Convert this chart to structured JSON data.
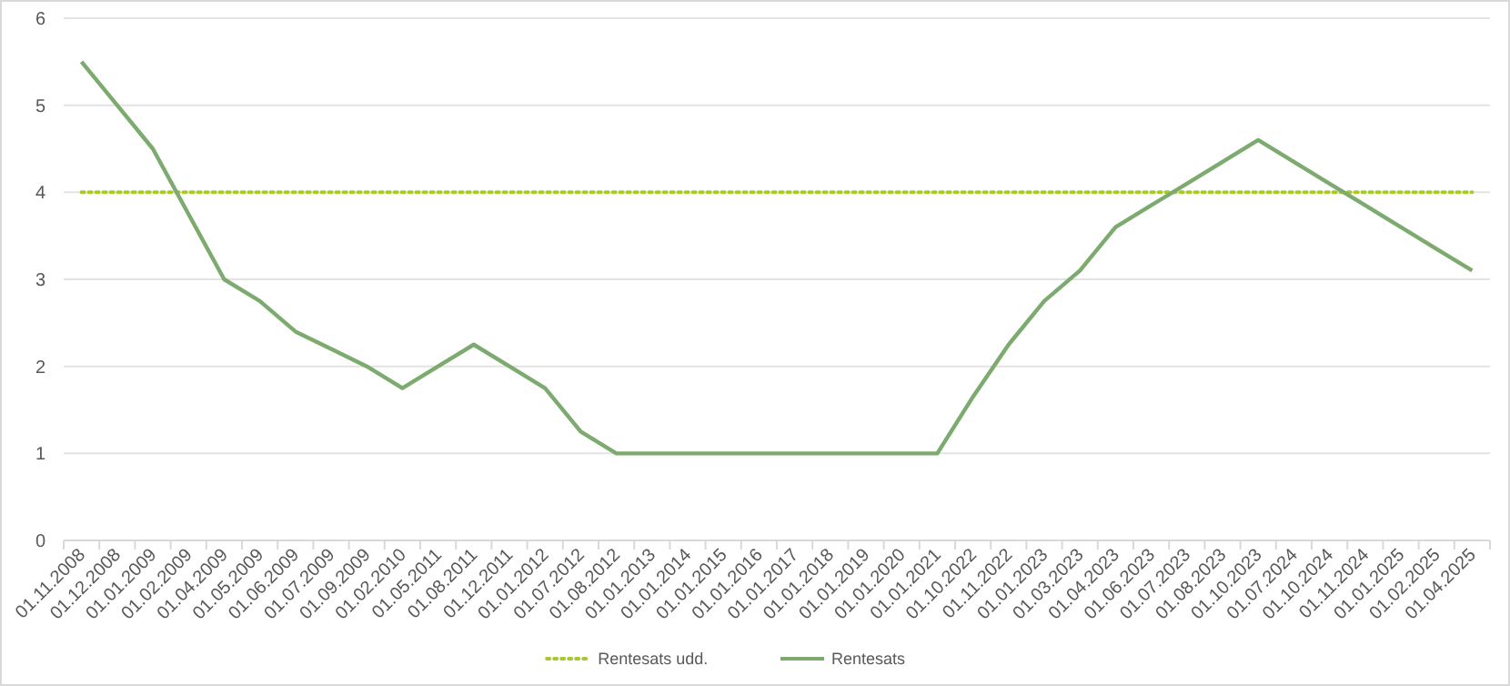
{
  "chart_data": {
    "type": "line",
    "categories": [
      "01.11.2008",
      "01.12.2008",
      "01.01.2009",
      "01.02.2009",
      "01.04.2009",
      "01.05.2009",
      "01.06.2009",
      "01.07.2009",
      "01.09.2009",
      "01.02.2010",
      "01.05.2011",
      "01.08.2011",
      "01.12.2011",
      "01.01.2012",
      "01.07.2012",
      "01.08.2012",
      "01.01.2013",
      "01.01.2014",
      "01.01.2015",
      "01.01.2016",
      "01.01.2017",
      "01.01.2018",
      "01.01.2019",
      "01.01.2020",
      "01.01.2021",
      "01.10.2022",
      "01.11.2022",
      "01.01.2023",
      "01.03.2023",
      "01.04.2023",
      "01.06.2023",
      "01.07.2023",
      "01.08.2023",
      "01.10.2023",
      "01.07.2024",
      "01.10.2024",
      "01.11.2024",
      "01.01.2025",
      "01.02.2025",
      "01.04.2025"
    ],
    "series": [
      {
        "name": "Rentesats udd.",
        "color": "#a8c92a",
        "line_style": "dotted",
        "values": [
          4,
          4,
          4,
          4,
          4,
          4,
          4,
          4,
          4,
          4,
          4,
          4,
          4,
          4,
          4,
          4,
          4,
          4,
          4,
          4,
          4,
          4,
          4,
          4,
          4,
          4,
          4,
          4,
          4,
          4,
          4,
          4,
          4,
          4,
          4,
          4,
          4,
          4,
          4,
          4
        ]
      },
      {
        "name": "Rentesats",
        "color": "#7daa6f",
        "line_style": "solid",
        "values": [
          5.5,
          5.0,
          4.5,
          3.75,
          3.0,
          2.75,
          2.4,
          2.2,
          2.0,
          1.75,
          2.0,
          2.25,
          2.0,
          1.75,
          1.25,
          1.0,
          1.0,
          1.0,
          1.0,
          1.0,
          1.0,
          1.0,
          1.0,
          1.0,
          1.0,
          1.65,
          2.25,
          2.75,
          3.1,
          3.6,
          3.85,
          4.1,
          4.35,
          4.6,
          4.35,
          4.1,
          3.85,
          3.6,
          3.35,
          3.1
        ]
      }
    ],
    "ylim": [
      0,
      6
    ],
    "yticks": [
      0,
      1,
      2,
      3,
      4,
      5,
      6
    ],
    "grid": "y",
    "legend": "bottom",
    "marker": "none"
  }
}
